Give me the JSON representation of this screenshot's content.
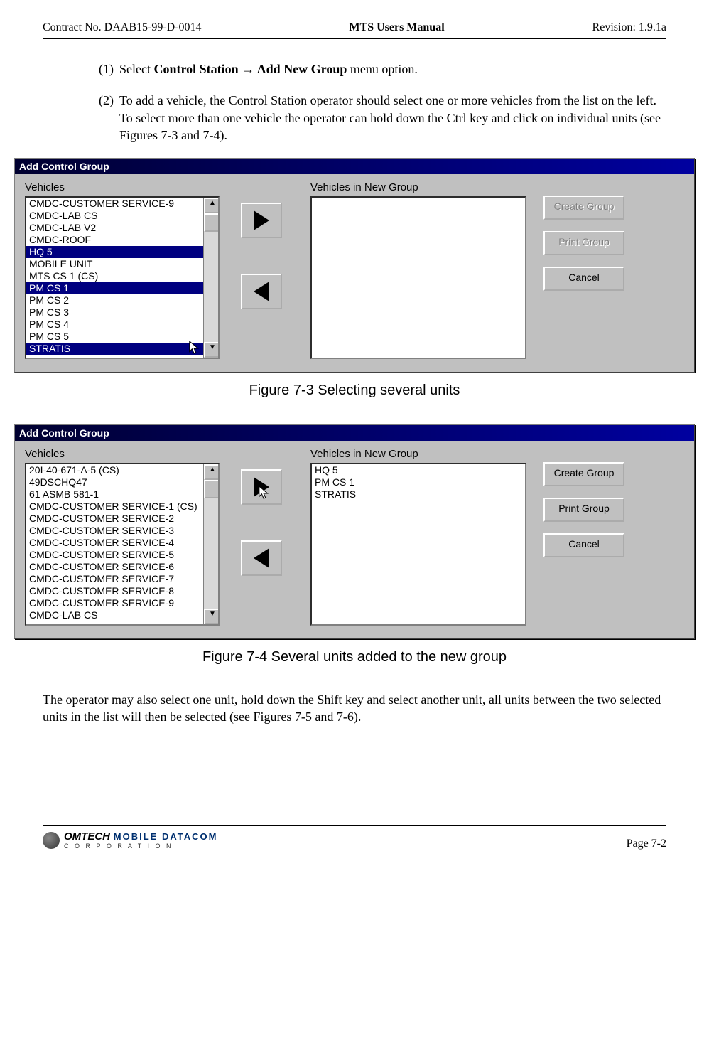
{
  "header": {
    "left": "Contract No. DAAB15-99-D-0014",
    "center": "MTS Users Manual",
    "right": "Revision:  1.9.1a"
  },
  "steps": {
    "s1_num": "(1)",
    "s1_pre": "Select ",
    "s1_bold": "Control Station → Add New Group",
    "s1_post": " menu option.",
    "s2_num": "(2)",
    "s2_txt": "To add a vehicle, the Control Station operator should select one or more vehicles from the list on the left.  To select more than one vehicle the operator can hold down the Ctrl key and click on individual units (see Figures 7-3 and 7-4)."
  },
  "dlg1": {
    "title": "Add Control Group",
    "vehicles_label": "Vehicles",
    "group_label": "Vehicles in New Group",
    "items": [
      "CMDC-CUSTOMER SERVICE-9",
      "CMDC-LAB CS",
      "CMDC-LAB V2",
      "CMDC-ROOF",
      "HQ 5",
      "MOBILE UNIT",
      "MTS CS 1 (CS)",
      "PM CS 1",
      "PM CS 2",
      "PM CS 3",
      "PM CS 4",
      "PM CS 5",
      "STRATIS"
    ],
    "sel_idx": [
      4,
      7,
      12
    ],
    "btn_create": "Create Group",
    "btn_print": "Print Group",
    "btn_cancel": "Cancel"
  },
  "caption1": "Figure 7-3     Selecting several units",
  "dlg2": {
    "title": "Add Control Group",
    "vehicles_label": "Vehicles",
    "group_label": "Vehicles in New Group",
    "items": [
      "20I-40-671-A-5 (CS)",
      "49DSCHQ47",
      "61 ASMB 581-1",
      "CMDC-CUSTOMER SERVICE-1 (CS)",
      "CMDC-CUSTOMER SERVICE-2",
      "CMDC-CUSTOMER SERVICE-3",
      "CMDC-CUSTOMER SERVICE-4",
      "CMDC-CUSTOMER SERVICE-5",
      "CMDC-CUSTOMER SERVICE-6",
      "CMDC-CUSTOMER SERVICE-7",
      "CMDC-CUSTOMER SERVICE-8",
      "CMDC-CUSTOMER SERVICE-9",
      "CMDC-LAB CS"
    ],
    "grp_items": [
      "HQ 5",
      "PM CS 1",
      "STRATIS"
    ],
    "btn_create": "Create Group",
    "btn_print": "Print Group",
    "btn_cancel": "Cancel"
  },
  "caption2": "Figure 7-4     Several units added to the new group",
  "para": "The operator may also select one unit, hold down the Shift key and select another unit, all units between the two selected units in the list will then be selected (see Figures 7-5 and 7-6).",
  "footer": {
    "logo_brand": "OMTECH",
    "logo_sub": "MOBILE DATACOM",
    "logo_corp": "C O R P O R A T I O N",
    "page": "Page 7-2"
  },
  "style": {
    "sel_bg": "#000080",
    "sel_fg": "#ffffff",
    "dlg_bg": "#c0c0c0"
  }
}
